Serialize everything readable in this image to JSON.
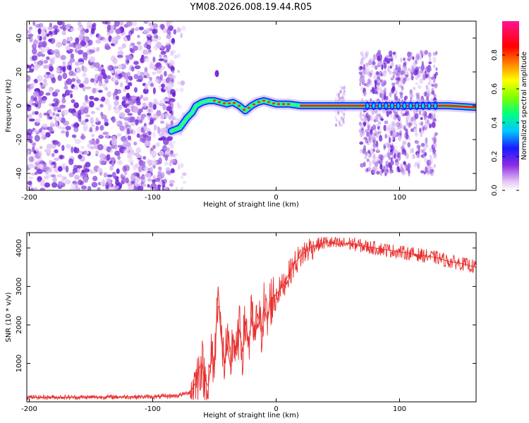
{
  "chart_data": [
    {
      "type": "heatmap",
      "title": "YM08.2026.008.19.44.R05",
      "xlabel": "Height of straight line (km)",
      "ylabel": "Frequency (Hz)",
      "xlim": [
        -202,
        162
      ],
      "ylim": [
        -50,
        50
      ],
      "xticks": [
        -200,
        -100,
        0,
        100
      ],
      "xtick_labels": [
        "-200",
        "-100",
        "0",
        "100"
      ],
      "yticks": [
        -40,
        -20,
        0,
        20,
        40
      ],
      "ytick_labels": [
        "-40",
        "-20",
        "0",
        "20",
        "40"
      ],
      "colorbar": {
        "label": "Normalized spectral amplitude",
        "range": [
          0,
          1
        ],
        "ticks": [
          0.0,
          0.2,
          0.4,
          0.6,
          0.8
        ],
        "tick_labels": [
          "0.0",
          "0.2",
          "0.4",
          "0.6",
          "0.8"
        ],
        "colors": [
          "#ffffff",
          "#e6c8f5",
          "#8a2be2",
          "#1a1aff",
          "#00c8ff",
          "#00ff80",
          "#7fff00",
          "#ffff00",
          "#ff8000",
          "#ff0000",
          "#ff1493"
        ]
      },
      "ridge_line": [
        {
          "x": -85,
          "y": -15
        },
        {
          "x": -78,
          "y": -13
        },
        {
          "x": -72,
          "y": -7
        },
        {
          "x": -68,
          "y": -4
        },
        {
          "x": -65,
          "y": 0
        },
        {
          "x": -60,
          "y": 2
        },
        {
          "x": -55,
          "y": 3
        },
        {
          "x": -50,
          "y": 3
        },
        {
          "x": -45,
          "y": 2
        },
        {
          "x": -40,
          "y": 1
        },
        {
          "x": -35,
          "y": 2
        },
        {
          "x": -30,
          "y": 0
        },
        {
          "x": -25,
          "y": -3
        },
        {
          "x": -20,
          "y": 0
        },
        {
          "x": -15,
          "y": 2
        },
        {
          "x": -10,
          "y": 3
        },
        {
          "x": -5,
          "y": 2
        },
        {
          "x": 0,
          "y": 1
        },
        {
          "x": 10,
          "y": 1
        },
        {
          "x": 20,
          "y": 0
        },
        {
          "x": 40,
          "y": 0
        },
        {
          "x": 60,
          "y": 0
        },
        {
          "x": 80,
          "y": 0
        },
        {
          "x": 100,
          "y": 0
        },
        {
          "x": 120,
          "y": 0
        },
        {
          "x": 140,
          "y": 0
        },
        {
          "x": 162,
          "y": -1
        }
      ],
      "side_blob": {
        "x": -48,
        "y": 19
      }
    },
    {
      "type": "line",
      "xlabel": "Height of straight line (km)",
      "ylabel": "SNR (10 * v/v)",
      "xlim": [
        -202,
        162
      ],
      "ylim": [
        0,
        4400
      ],
      "xticks": [
        -200,
        -100,
        0,
        100
      ],
      "xtick_labels": [
        "-200",
        "-100",
        "0",
        "100"
      ],
      "yticks": [
        1000,
        2000,
        3000,
        4000
      ],
      "ytick_labels": [
        "1000",
        "2000",
        "3000",
        "4000"
      ],
      "series": [
        {
          "name": "SNR",
          "color": "#e8302e",
          "x": [
            -202,
            -180,
            -150,
            -120,
            -100,
            -80,
            -70,
            -65,
            -62,
            -60,
            -58,
            -55,
            -52,
            -50,
            -47,
            -45,
            -42,
            -40,
            -37,
            -35,
            -32,
            -30,
            -27,
            -25,
            -22,
            -20,
            -17,
            -15,
            -12,
            -10,
            -7,
            -5,
            0,
            5,
            10,
            15,
            20,
            25,
            30,
            35,
            40,
            50,
            60,
            70,
            80,
            90,
            100,
            110,
            120,
            130,
            140,
            150,
            162
          ],
          "values": [
            120,
            120,
            120,
            130,
            130,
            160,
            250,
            500,
            900,
            1000,
            600,
            400,
            1300,
            900,
            3000,
            1800,
            1000,
            1500,
            900,
            1700,
            1200,
            1900,
            1300,
            2100,
            1500,
            2200,
            1600,
            2300,
            1800,
            2500,
            2100,
            2600,
            2800,
            3000,
            3300,
            3600,
            3800,
            3950,
            4050,
            4100,
            4150,
            4100,
            4120,
            4050,
            4000,
            3950,
            3900,
            3850,
            3800,
            3750,
            3650,
            3600,
            3500
          ]
        }
      ]
    }
  ]
}
